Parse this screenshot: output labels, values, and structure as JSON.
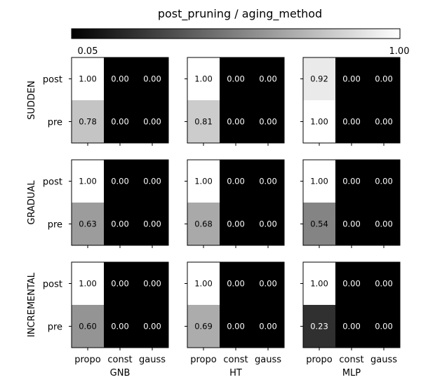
{
  "chart_data": {
    "type": "heatmap",
    "title": "post_pruning / aging_method",
    "colormap": "greys",
    "colorbar": {
      "min_label": "0.05",
      "max_label": "1.00",
      "vmin": 0.05,
      "vmax": 1.0
    },
    "x_tick_labels": [
      "propo",
      "const",
      "gauss"
    ],
    "y_tick_labels": [
      "post",
      "pre"
    ],
    "row_labels": [
      "SUDDEN",
      "GRADUAL",
      "INCREMENTAL"
    ],
    "column_labels": [
      "GNB",
      "HT",
      "MLP"
    ],
    "panels": [
      [
        {
          "values": [
            [
              1.0,
              0.0,
              0.0
            ],
            [
              0.78,
              0.0,
              0.0
            ]
          ],
          "labels": [
            [
              "1.00",
              "0.00",
              "0.00"
            ],
            [
              "0.78",
              "0.00",
              "0.00"
            ]
          ]
        },
        {
          "values": [
            [
              1.0,
              0.0,
              0.0
            ],
            [
              0.81,
              0.0,
              0.0
            ]
          ],
          "labels": [
            [
              "1.00",
              "0.00",
              "0.00"
            ],
            [
              "0.81",
              "0.00",
              "0.00"
            ]
          ]
        },
        {
          "values": [
            [
              0.92,
              0.0,
              0.0
            ],
            [
              1.0,
              0.0,
              0.0
            ]
          ],
          "labels": [
            [
              "0.92",
              "0.00",
              "0.00"
            ],
            [
              "1.00",
              "0.00",
              "0.00"
            ]
          ]
        }
      ],
      [
        {
          "values": [
            [
              1.0,
              0.0,
              0.0
            ],
            [
              0.63,
              0.0,
              0.0
            ]
          ],
          "labels": [
            [
              "1.00",
              "0.00",
              "0.00"
            ],
            [
              "0.63",
              "0.00",
              "0.00"
            ]
          ]
        },
        {
          "values": [
            [
              1.0,
              0.0,
              0.0
            ],
            [
              0.68,
              0.0,
              0.0
            ]
          ],
          "labels": [
            [
              "1.00",
              "0.00",
              "0.00"
            ],
            [
              "0.68",
              "0.00",
              "0.00"
            ]
          ]
        },
        {
          "values": [
            [
              1.0,
              0.0,
              0.0
            ],
            [
              0.54,
              0.0,
              0.0
            ]
          ],
          "labels": [
            [
              "1.00",
              "0.00",
              "0.00"
            ],
            [
              "0.54",
              "0.00",
              "0.00"
            ]
          ]
        }
      ],
      [
        {
          "values": [
            [
              1.0,
              0.0,
              0.0
            ],
            [
              0.6,
              0.0,
              0.0
            ]
          ],
          "labels": [
            [
              "1.00",
              "0.00",
              "0.00"
            ],
            [
              "0.60",
              "0.00",
              "0.00"
            ]
          ]
        },
        {
          "values": [
            [
              1.0,
              0.0,
              0.0
            ],
            [
              0.69,
              0.0,
              0.0
            ]
          ],
          "labels": [
            [
              "1.00",
              "0.00",
              "0.00"
            ],
            [
              "0.69",
              "0.00",
              "0.00"
            ]
          ]
        },
        {
          "values": [
            [
              1.0,
              0.0,
              0.0
            ],
            [
              0.23,
              0.0,
              0.0
            ]
          ],
          "labels": [
            [
              "1.00",
              "0.00",
              "0.00"
            ],
            [
              "0.23",
              "0.00",
              "0.00"
            ]
          ]
        }
      ]
    ]
  }
}
